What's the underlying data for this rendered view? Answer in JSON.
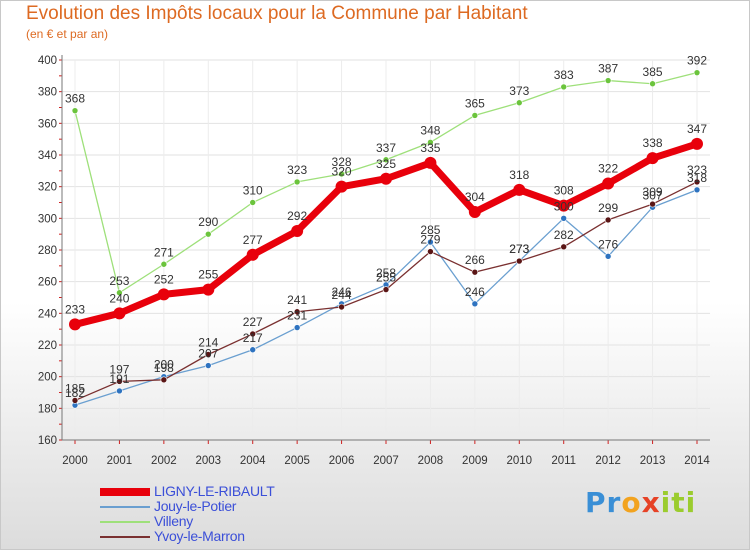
{
  "title": "Evolution des Impôts locaux pour la Commune par Habitant",
  "subtitle": "(en € et par an)",
  "logo": {
    "parts": [
      "Pr",
      "o",
      "x",
      "iti"
    ],
    "colors": [
      "#3a8fd6",
      "#f2a31f",
      "#e64226",
      "#9bcc2e"
    ]
  },
  "chart_data": {
    "type": "line",
    "title": "Evolution des Impôts locaux pour la Commune par Habitant",
    "ylabel": "(en € et par an)",
    "x": [
      2000,
      2001,
      2002,
      2003,
      2004,
      2005,
      2006,
      2007,
      2008,
      2009,
      2010,
      2011,
      2012,
      2013,
      2014
    ],
    "ylim": [
      160,
      400
    ],
    "yticks": [
      160,
      180,
      200,
      220,
      240,
      260,
      280,
      300,
      320,
      340,
      360,
      380,
      400
    ],
    "grid": true,
    "legend": "bottom-left",
    "series": [
      {
        "name": "LIGNY-LE-RIBAULT",
        "color": "#e8000b",
        "marker": "#e8000b",
        "values": [
          233,
          240,
          252,
          255,
          277,
          292,
          320,
          325,
          335,
          304,
          318,
          308,
          322,
          338,
          347
        ]
      },
      {
        "name": "Jouy-le-Potier",
        "color": "#6a9fd0",
        "marker": "#2e73c0",
        "values": [
          182,
          191,
          200,
          207,
          217,
          231,
          246,
          258,
          285,
          246,
          273,
          300,
          276,
          307,
          318
        ]
      },
      {
        "name": "Villeny",
        "color": "#9ee07a",
        "marker": "#6bc43c",
        "values": [
          368,
          253,
          271,
          290,
          310,
          323,
          328,
          337,
          348,
          365,
          373,
          383,
          387,
          385,
          392
        ]
      },
      {
        "name": "Yvoy-le-Marron",
        "color": "#7a3030",
        "marker": "#5a1515",
        "values": [
          185,
          197,
          198,
          214,
          227,
          241,
          244,
          255,
          279,
          266,
          273,
          282,
          299,
          309,
          323
        ]
      }
    ]
  }
}
